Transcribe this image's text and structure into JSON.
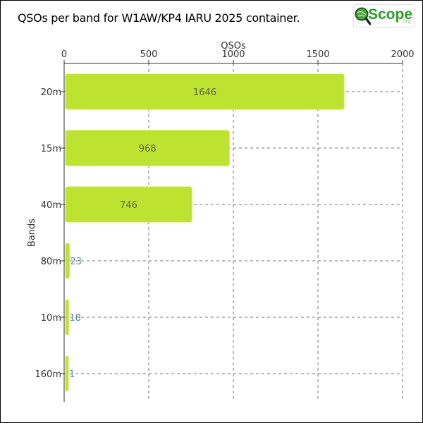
{
  "header": {
    "title": "QSOs per band for W1AW/KP4 IARU 2025 container.",
    "logo_text": "Scope",
    "logo_sub": ".org"
  },
  "colors": {
    "bar": "#bde22f",
    "bar_stroke": "#c8ea4a",
    "label_inside": "#5f6a3a",
    "label_outside": "#5e8fa6"
  },
  "chart_data": {
    "type": "bar",
    "orientation": "horizontal",
    "xlabel": "QSOs",
    "ylabel": "Bands",
    "xlim": [
      0,
      2000
    ],
    "xticks": [
      "0",
      "500",
      "1000",
      "1500",
      "2000"
    ],
    "grid": true,
    "categories": [
      "20m",
      "15m",
      "40m",
      "80m",
      "10m",
      "160m"
    ],
    "values": [
      1646,
      968,
      746,
      23,
      18,
      1
    ]
  }
}
